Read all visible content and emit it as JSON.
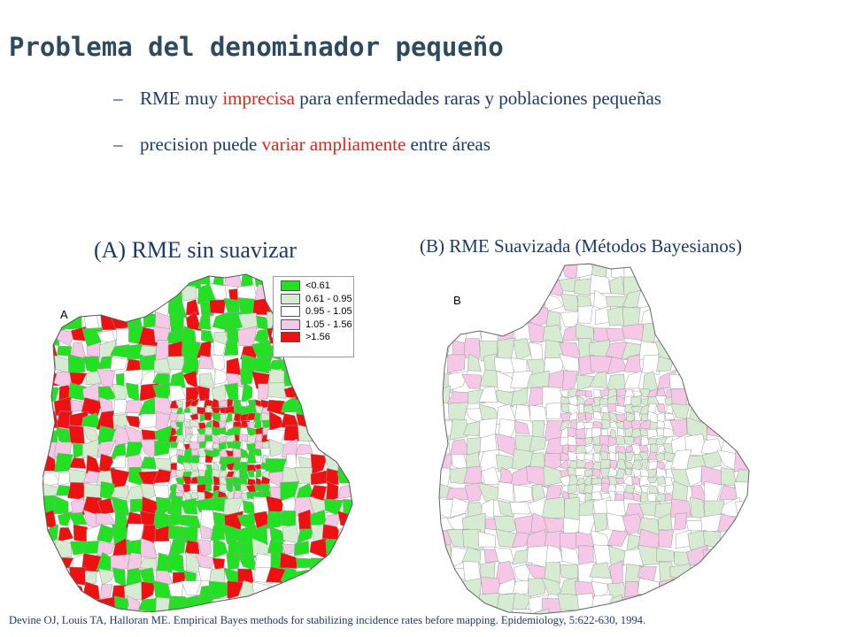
{
  "slide": {
    "title": "Problema del denominador pequeño",
    "bullets": [
      {
        "dash": "–",
        "before": "RME muy ",
        "highlight": "imprecisa",
        "after": " para enfermedades raras y poblaciones pequeñas"
      },
      {
        "dash": "–",
        "before": "precision puede ",
        "highlight": "variar ampliamente",
        "after": " entre áreas"
      }
    ],
    "highlight_color": "#e2231a",
    "text_color": "#1a3a6e",
    "title_color": "#2f4a5e"
  },
  "map_a": {
    "caption": "(A) RME sin suavizar",
    "panel_letter": "A",
    "legend": [
      {
        "label": "<0.61",
        "color": "#22e022"
      },
      {
        "label": "0.61 - 0.95",
        "color": "#d7ead2"
      },
      {
        "label": "0.95 - 1.05",
        "color": "#ffffff"
      },
      {
        "label": "1.05 - 1.56",
        "color": "#f4c8e6"
      },
      {
        "label": ">1.56",
        "color": "#ee1111"
      }
    ]
  },
  "map_b": {
    "caption": "(B) RME Suavizada (Métodos Bayesianos)",
    "panel_letter": "B"
  },
  "citation": "Devine OJ, Louis TA, Halloran ME. Empirical  Bayes methods for stabilizing incidence rates before mapping. Epidemiology, 5:622-630, 1994."
}
